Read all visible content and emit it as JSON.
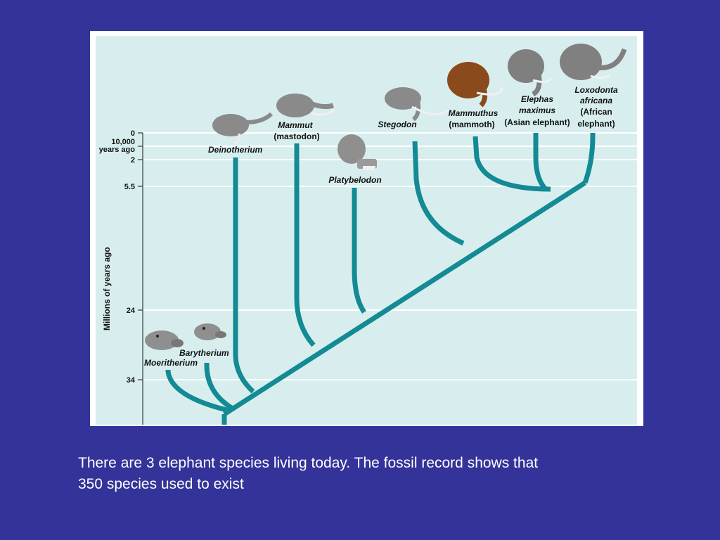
{
  "figure": {
    "y_axis_label": "Millions of years ago",
    "ticks": [
      {
        "label": "0"
      },
      {
        "label": "10,000"
      },
      {
        "label": "years ago"
      },
      {
        "label": "2"
      },
      {
        "label": "5.5"
      },
      {
        "label": "24"
      },
      {
        "label": "34"
      }
    ],
    "taxa": [
      {
        "id": "moeritherium",
        "lines": [
          "Moeritherium"
        ]
      },
      {
        "id": "barytherium",
        "lines": [
          "Barytherium"
        ]
      },
      {
        "id": "deinotherium",
        "lines": [
          "Deinotherium"
        ]
      },
      {
        "id": "mammut",
        "lines": [
          "Mammut",
          "(mastodon)"
        ]
      },
      {
        "id": "platybelodon",
        "lines": [
          "Platybelodon"
        ]
      },
      {
        "id": "stegodon",
        "lines": [
          "Stegodon"
        ]
      },
      {
        "id": "mammuthus",
        "lines": [
          "Mammuthus",
          "(mammoth)"
        ]
      },
      {
        "id": "elephas",
        "lines": [
          "Elephas",
          "maximus",
          "(Asian elephant)"
        ]
      },
      {
        "id": "loxodonta",
        "lines": [
          "Loxodonta",
          "africana",
          "(African",
          "elephant)"
        ]
      }
    ],
    "colors": {
      "panel_bg": "#d8eeee",
      "branch": "#138a94",
      "slide_bg": "#333399",
      "animal_gray": "#7a7a7a",
      "mammoth_brown": "#8a4a1c"
    }
  },
  "caption": {
    "line1": "There are 3 elephant species living today.  The fossil record shows that",
    "line2": "350 species used to exist"
  }
}
